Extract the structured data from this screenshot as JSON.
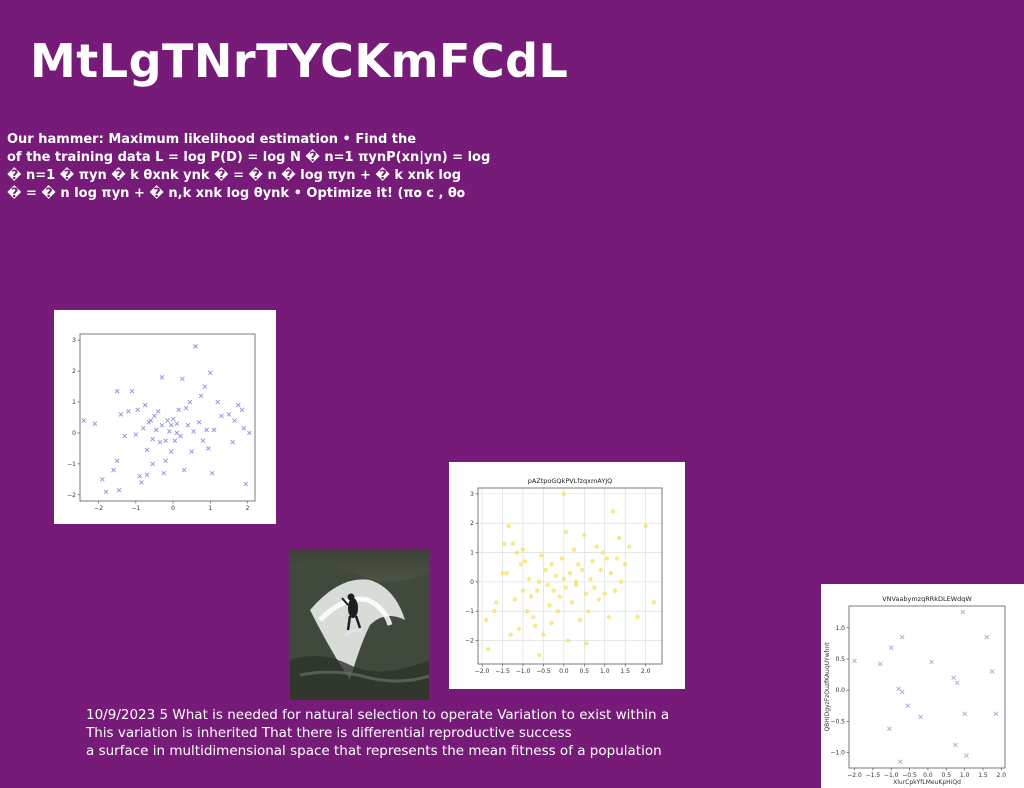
{
  "slide": {
    "title": "MtLgTNrTYCKmFCdL",
    "body_lines": [
      "Our hammer: Maximum likelihood estimation • Find the",
      "of the training data L = log P(D) = log N � n=1 πynP(xn|yn) = log",
      "� n=1 � πyn � k θxnk ynk � = � n � log πyn + � k xnk log",
      "� = � n log πyn + � n,k xnk log θynk • Optimize it! (π𝐨 c , θ𝐨"
    ],
    "footer_lines": [
      "10/9/2023 5 What is needed for natural selection to operate Variation to exist within a",
      "This variation is inherited That there is differential reproductive success",
      "a surface in multidimensional space that represents the mean fitness of a population"
    ],
    "photo": {
      "subject": "surfer riding a wave"
    }
  },
  "chart_data": [
    {
      "type": "scatter",
      "title": "",
      "xlabel": "",
      "ylabel": "",
      "xlim": [
        -2.5,
        2.2
      ],
      "ylim": [
        -2.2,
        3.2
      ],
      "xticks": [
        -2,
        -1,
        0,
        1,
        2
      ],
      "yticks": [
        -2,
        -1,
        0,
        1,
        2,
        3
      ],
      "xtick_labels": [
        "−2",
        "−1",
        "0",
        "1",
        "2"
      ],
      "ytick_labels": [
        "−2",
        "−1",
        "0",
        "1",
        "2",
        "3"
      ],
      "grid": false,
      "marker": "x",
      "color": "#6b6bd6",
      "series": [
        {
          "points": [
            [
              -2.4,
              0.4
            ],
            [
              -2.1,
              0.3
            ],
            [
              -1.9,
              -1.5
            ],
            [
              -1.8,
              -1.9
            ],
            [
              -1.6,
              -1.2
            ],
            [
              -1.5,
              -0.9
            ],
            [
              -1.5,
              1.35
            ],
            [
              -1.45,
              -1.85
            ],
            [
              -1.4,
              0.6
            ],
            [
              -1.2,
              0.7
            ],
            [
              -1.1,
              1.35
            ],
            [
              -1.0,
              -0.05
            ],
            [
              -0.95,
              0.75
            ],
            [
              -0.9,
              -1.4
            ],
            [
              -0.85,
              -1.6
            ],
            [
              -0.8,
              0.15
            ],
            [
              -0.75,
              0.9
            ],
            [
              -0.7,
              -0.55
            ],
            [
              -0.65,
              0.35
            ],
            [
              -0.6,
              0.4
            ],
            [
              -0.55,
              -0.2
            ],
            [
              -0.5,
              0.55
            ],
            [
              -0.45,
              0.1
            ],
            [
              -0.4,
              0.7
            ],
            [
              -0.35,
              -0.3
            ],
            [
              -0.3,
              0.25
            ],
            [
              -0.3,
              1.8
            ],
            [
              -0.25,
              -1.3
            ],
            [
              -0.2,
              -0.25
            ],
            [
              -0.15,
              0.4
            ],
            [
              -0.1,
              0.05
            ],
            [
              -0.05,
              0.25
            ],
            [
              -0.05,
              -0.6
            ],
            [
              0.0,
              0.45
            ],
            [
              0.05,
              -0.25
            ],
            [
              0.1,
              0.0
            ],
            [
              0.1,
              0.3
            ],
            [
              0.15,
              0.75
            ],
            [
              0.2,
              -0.1
            ],
            [
              0.25,
              1.75
            ],
            [
              0.3,
              -1.2
            ],
            [
              0.35,
              0.8
            ],
            [
              0.4,
              0.25
            ],
            [
              0.45,
              1.0
            ],
            [
              0.5,
              -0.6
            ],
            [
              0.55,
              0.05
            ],
            [
              0.6,
              2.8
            ],
            [
              0.7,
              0.35
            ],
            [
              0.75,
              1.2
            ],
            [
              0.8,
              -0.25
            ],
            [
              0.85,
              1.5
            ],
            [
              0.9,
              0.1
            ],
            [
              0.95,
              -0.5
            ],
            [
              1.0,
              1.95
            ],
            [
              1.05,
              -1.3
            ],
            [
              1.1,
              0.1
            ],
            [
              1.2,
              1.0
            ],
            [
              1.3,
              0.55
            ],
            [
              1.5,
              0.6
            ],
            [
              1.6,
              -0.3
            ],
            [
              1.65,
              0.4
            ],
            [
              1.75,
              0.9
            ],
            [
              1.85,
              0.75
            ],
            [
              1.9,
              0.15
            ],
            [
              1.95,
              -1.65
            ],
            [
              2.05,
              0.0
            ],
            [
              -0.7,
              -1.35
            ],
            [
              -0.2,
              -0.9
            ],
            [
              -1.3,
              -0.1
            ],
            [
              -0.55,
              -1.0
            ]
          ]
        }
      ]
    },
    {
      "type": "scatter",
      "title": "pAZtpoGQkPVLfzqxmAYJQ",
      "xlabel": "",
      "ylabel": "",
      "xlim": [
        -2.1,
        2.4
      ],
      "ylim": [
        -2.8,
        3.2
      ],
      "xticks": [
        -2.0,
        -1.5,
        -1.0,
        -0.5,
        0.0,
        0.5,
        1.0,
        1.5,
        2.0
      ],
      "yticks": [
        -2,
        -1,
        0,
        1,
        2,
        3
      ],
      "xtick_labels": [
        "−2.0",
        "−1.5",
        "−1.0",
        "−0.5",
        "0.0",
        "0.5",
        "1.0",
        "1.5",
        "2.0"
      ],
      "ytick_labels": [
        "−2",
        "−1",
        "0",
        "1",
        "2",
        "3"
      ],
      "grid": true,
      "marker": "o",
      "color": "#f5e36b",
      "series": [
        {
          "points": [
            [
              -1.9,
              -1.3
            ],
            [
              -1.85,
              -2.3
            ],
            [
              -1.7,
              -1.0
            ],
            [
              -1.65,
              -0.7
            ],
            [
              -1.5,
              0.3
            ],
            [
              -1.45,
              1.3
            ],
            [
              -1.4,
              0.3
            ],
            [
              -1.35,
              1.9
            ],
            [
              -1.3,
              -1.8
            ],
            [
              -1.25,
              1.3
            ],
            [
              -1.2,
              -0.6
            ],
            [
              -1.15,
              1.0
            ],
            [
              -1.1,
              -1.6
            ],
            [
              -1.05,
              0.6
            ],
            [
              -1.0,
              1.1
            ],
            [
              -0.95,
              0.7
            ],
            [
              -0.9,
              -1.0
            ],
            [
              -0.85,
              0.1
            ],
            [
              -0.8,
              -0.5
            ],
            [
              -0.75,
              -1.2
            ],
            [
              -0.7,
              -1.5
            ],
            [
              -0.65,
              -0.3
            ],
            [
              -0.6,
              -2.5
            ],
            [
              -0.55,
              0.9
            ],
            [
              -0.5,
              -1.8
            ],
            [
              -0.45,
              0.4
            ],
            [
              -0.4,
              -0.1
            ],
            [
              -0.35,
              -0.8
            ],
            [
              -0.3,
              0.6
            ],
            [
              -0.25,
              -0.3
            ],
            [
              -0.2,
              0.2
            ],
            [
              -0.15,
              -1.0
            ],
            [
              -0.1,
              -0.5
            ],
            [
              -0.05,
              0.8
            ],
            [
              0.0,
              0.1
            ],
            [
              0.0,
              3.0
            ],
            [
              0.05,
              1.7
            ],
            [
              0.05,
              -0.2
            ],
            [
              0.1,
              -2.0
            ],
            [
              0.15,
              0.3
            ],
            [
              0.2,
              -0.7
            ],
            [
              0.25,
              1.1
            ],
            [
              0.3,
              -0.1
            ],
            [
              0.35,
              0.6
            ],
            [
              0.4,
              -1.3
            ],
            [
              0.45,
              0.4
            ],
            [
              0.5,
              1.6
            ],
            [
              0.55,
              -0.4
            ],
            [
              0.6,
              -1.0
            ],
            [
              0.65,
              0.1
            ],
            [
              0.7,
              0.7
            ],
            [
              0.75,
              -0.2
            ],
            [
              0.8,
              1.2
            ],
            [
              0.85,
              -0.6
            ],
            [
              0.9,
              0.4
            ],
            [
              0.95,
              1.0
            ],
            [
              1.0,
              -0.4
            ],
            [
              1.05,
              0.8
            ],
            [
              1.1,
              -1.2
            ],
            [
              1.15,
              0.3
            ],
            [
              1.2,
              2.4
            ],
            [
              1.25,
              -0.3
            ],
            [
              1.3,
              0.8
            ],
            [
              1.35,
              1.5
            ],
            [
              1.4,
              0.0
            ],
            [
              1.5,
              0.6
            ],
            [
              1.6,
              1.2
            ],
            [
              1.8,
              -1.2
            ],
            [
              2.0,
              1.9
            ],
            [
              2.2,
              -0.7
            ],
            [
              -0.3,
              -1.4
            ],
            [
              0.3,
              0.0
            ],
            [
              -0.6,
              0.0
            ],
            [
              0.55,
              -2.1
            ],
            [
              -1.0,
              -0.3
            ]
          ]
        }
      ]
    },
    {
      "type": "scatter",
      "title": "VNVaabymzqRRkDLEWdqW",
      "xlabel": "XlurCpkYfLMeuKpHiQd",
      "ylabel": "QBHIDgyzFzOuzfKAuqUYwhnt",
      "xlim": [
        -2.15,
        2.1
      ],
      "ylim": [
        -1.25,
        1.35
      ],
      "xticks": [
        -2.0,
        -1.5,
        -1.0,
        -0.5,
        0.0,
        0.5,
        1.0,
        1.5,
        2.0
      ],
      "yticks": [
        -1.0,
        -0.5,
        0.0,
        0.5,
        1.0
      ],
      "xtick_labels": [
        "−2.0",
        "−1.5",
        "−1.0",
        "−0.5",
        "0.0",
        "0.5",
        "1.0",
        "1.5",
        "2.0"
      ],
      "ytick_labels": [
        "−1.0",
        "−0.5",
        "0.0",
        "0.5",
        "1.0"
      ],
      "grid": false,
      "marker": "x",
      "color": "#8a8acc",
      "series": [
        {
          "points": [
            [
              -2.0,
              0.47
            ],
            [
              -1.3,
              0.42
            ],
            [
              -1.05,
              -0.62
            ],
            [
              -1.0,
              0.68
            ],
            [
              -0.8,
              0.02
            ],
            [
              -0.75,
              -1.15
            ],
            [
              -0.7,
              0.85
            ],
            [
              -0.7,
              -0.03
            ],
            [
              -0.55,
              -0.25
            ],
            [
              -0.2,
              -0.43
            ],
            [
              0.1,
              0.45
            ],
            [
              0.7,
              0.2
            ],
            [
              0.75,
              -0.88
            ],
            [
              0.8,
              0.12
            ],
            [
              0.95,
              1.25
            ],
            [
              1.0,
              -0.38
            ],
            [
              1.05,
              -1.05
            ],
            [
              1.6,
              0.85
            ],
            [
              1.75,
              0.3
            ],
            [
              1.85,
              -0.38
            ]
          ]
        }
      ]
    }
  ]
}
